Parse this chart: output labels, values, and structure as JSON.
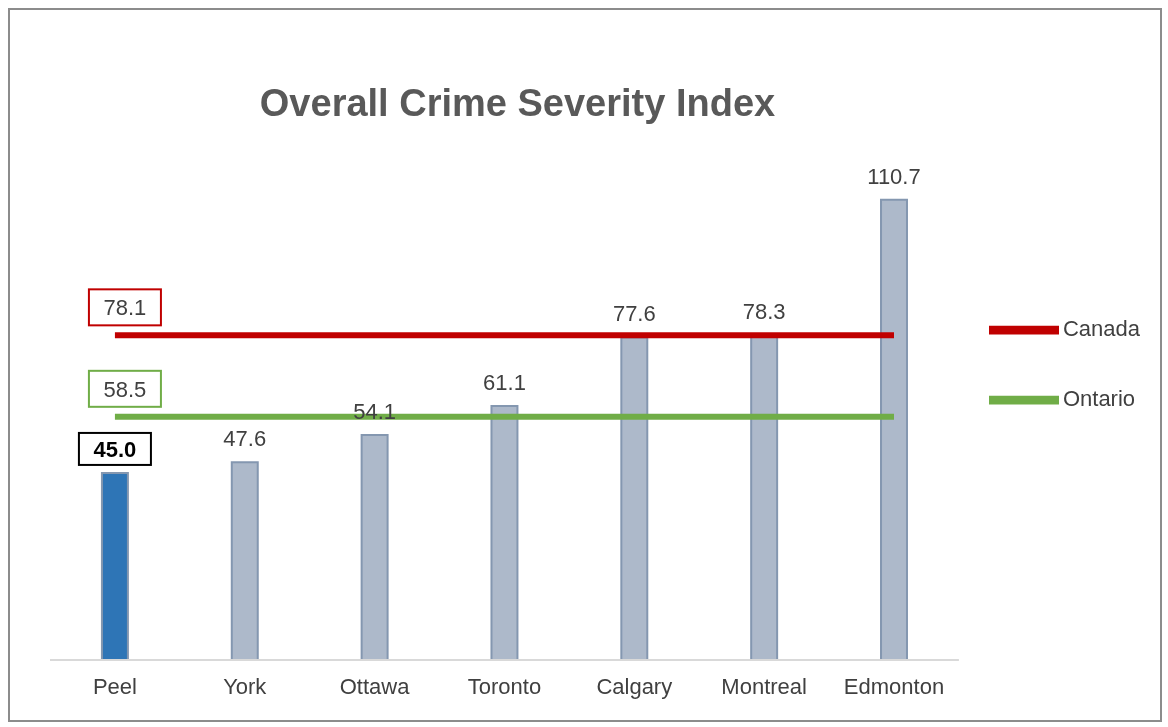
{
  "chart_data": {
    "type": "bar",
    "title": "Overall Crime Severity Index",
    "categories": [
      "Peel",
      "York",
      "Ottawa",
      "Toronto",
      "Calgary",
      "Montreal",
      "Edmonton"
    ],
    "values": [
      45.0,
      47.6,
      54.1,
      61.1,
      77.6,
      78.3,
      110.7
    ],
    "colors": [
      "#2e75b6",
      "#adb9ca",
      "#adb9ca",
      "#adb9ca",
      "#adb9ca",
      "#adb9ca",
      "#adb9ca"
    ],
    "value_labels": [
      "45.0",
      "47.6",
      "54.1",
      "61.1",
      "77.6",
      "78.3",
      "110.7"
    ],
    "series": [
      {
        "name": "Canada",
        "type": "line",
        "color": "#c00000",
        "values": [
          78.1,
          78.1,
          78.1,
          78.1,
          78.1,
          78.1,
          78.1
        ],
        "value_labels": [
          "78.1",
          null,
          null,
          null,
          null,
          null,
          null
        ]
      },
      {
        "name": "Ontario",
        "type": "line",
        "color": "#70ad47",
        "values": [
          58.5,
          58.5,
          58.5,
          58.5,
          58.5,
          58.5,
          58.5
        ],
        "value_labels": [
          "58.5",
          null,
          null,
          null,
          null,
          null,
          null
        ]
      }
    ],
    "tick_labels": "x",
    "grid": false,
    "legend": "right"
  }
}
